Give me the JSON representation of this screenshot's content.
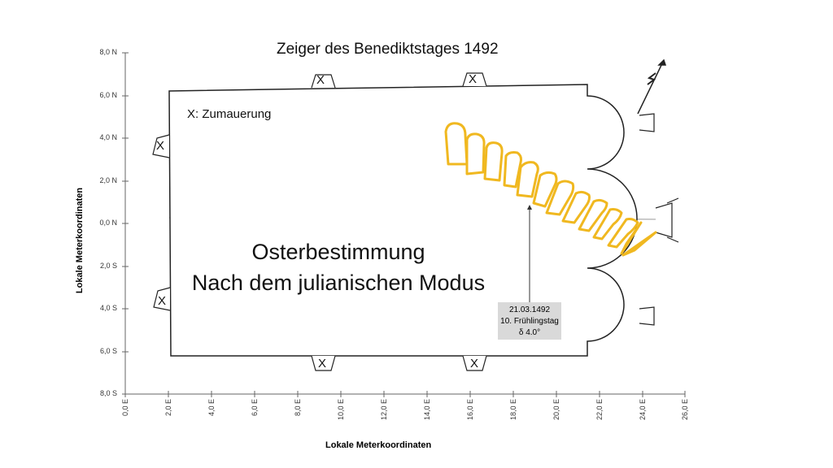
{
  "title": "Zeiger des Benediktstages 1492",
  "legend": "X: Zumauerung",
  "heading_line1": "Osterbestimmung",
  "heading_line2": "Nach dem julianischen Modus",
  "callout": {
    "date": "21.03.1492",
    "day": "10. Frühlingstag",
    "declination": "δ 4.0°"
  },
  "wall_mark": "X",
  "axes": {
    "x_label": "Lokale Meterkoordinaten",
    "y_label": "Lokale Meterkoordinaten",
    "x_ticks": [
      "0,0 E",
      "2,0 E",
      "4,0 E",
      "6,0 E",
      "8,0 E",
      "10,0 E",
      "12,0 E",
      "14,0 E",
      "16,0 E",
      "18,0 E",
      "20,0 E",
      "22,0 E",
      "24,0 E",
      "26,0 E"
    ],
    "y_ticks": [
      "8,0 N",
      "6,0 N",
      "4,0 N",
      "2,0 N",
      "0,0 N",
      "2,0 S",
      "4,0 S",
      "6,0 S",
      "8,0 S"
    ]
  },
  "colors": {
    "shadow": "#f0b820",
    "outline": "#222222"
  }
}
